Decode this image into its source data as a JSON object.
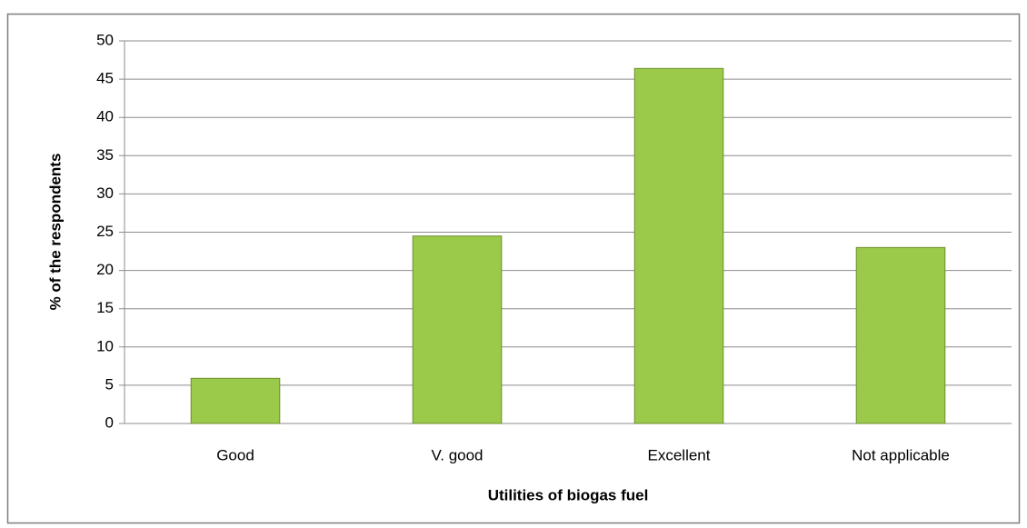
{
  "chart_data": {
    "type": "bar",
    "xlabel": "Utilities  of biogas fuel",
    "ylabel": "% of the respondents",
    "categories": [
      "Good",
      "V. good",
      "Excellent",
      "Not applicable"
    ],
    "values": [
      5.9,
      24.5,
      46.4,
      23
    ],
    "color": "#9bc94a",
    "ylim": [
      0,
      50
    ],
    "yticks": [
      0,
      5,
      10,
      15,
      20,
      25,
      30,
      35,
      40,
      45,
      50
    ],
    "grid": true
  }
}
